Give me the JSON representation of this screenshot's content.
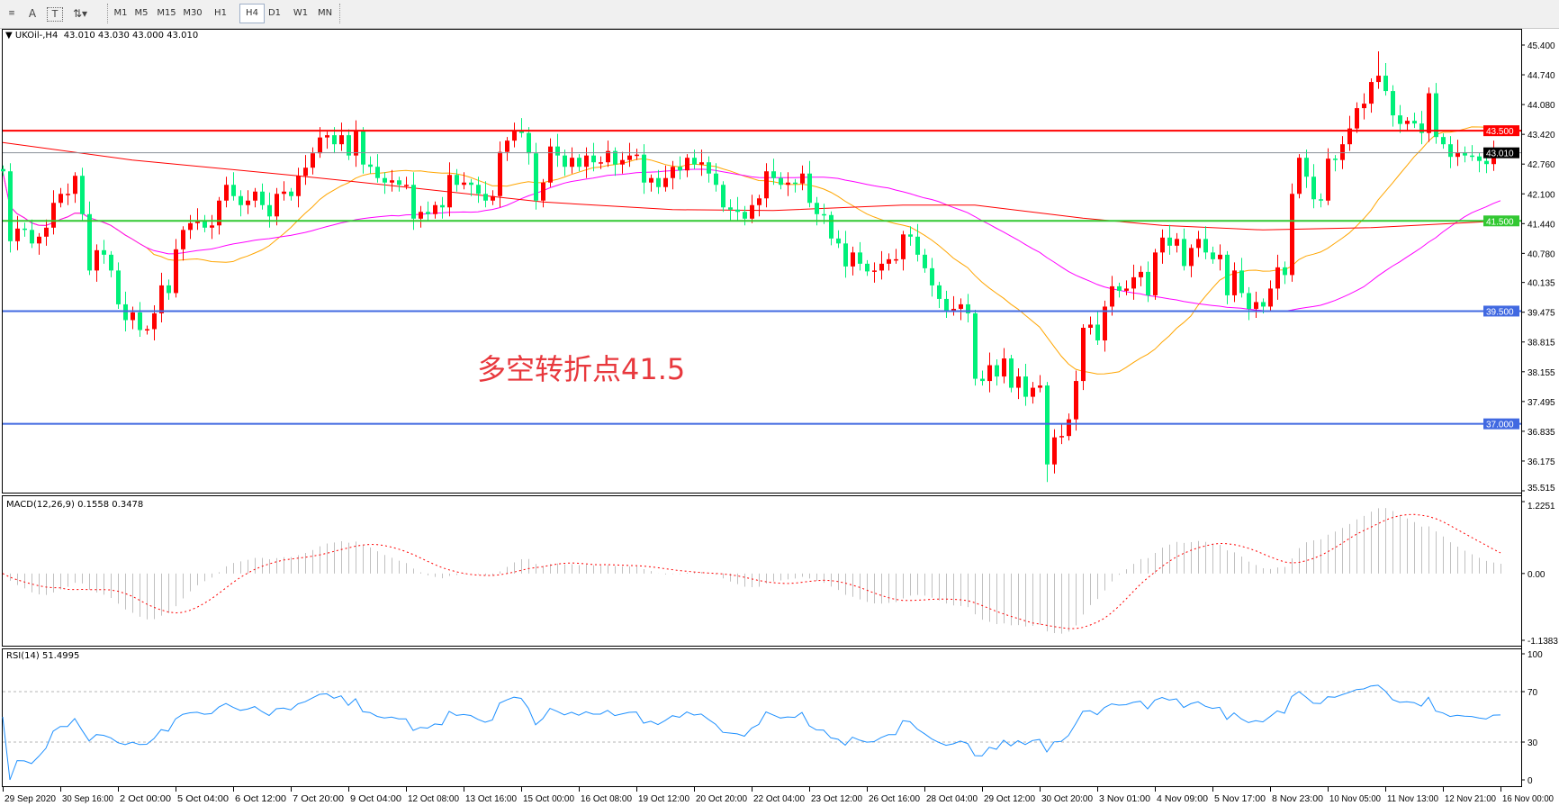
{
  "toolbar": {
    "icons": [
      "periods-separator-icon",
      "text-icon",
      "text-label-icon",
      "arrows-icon"
    ],
    "timeframes": [
      "M1",
      "M5",
      "M15",
      "M30",
      "H1",
      "H4",
      "D1",
      "W1",
      "MN"
    ],
    "active_timeframe": "H4"
  },
  "chart": {
    "symbol_header": "UKOil-,H4",
    "ohlc": "43.010 43.030 43.000 43.010",
    "annotation": "多空转折点41.5",
    "macd_header": "MACD(12,26,9) 0.1558 0.3478",
    "rsi_header": "RSI(14) 51.4995"
  },
  "chart_data": [
    {
      "type": "candlestick",
      "symbol": "UKOil-",
      "timeframe": "H4",
      "up_color": "#ff0000",
      "down_color": "#00f07a",
      "closes": [
        42.6,
        41.05,
        41.33,
        41.3,
        41.0,
        41.15,
        41.35,
        41.9,
        42.1,
        42.1,
        42.5,
        41.65,
        40.4,
        40.85,
        40.75,
        40.4,
        39.65,
        39.3,
        39.47,
        39.08,
        39.1,
        39.45,
        40.07,
        39.9,
        40.87,
        41.3,
        41.45,
        41.5,
        41.35,
        41.4,
        41.95,
        42.3,
        42.05,
        41.85,
        41.95,
        42.15,
        41.85,
        41.6,
        42.1,
        42.15,
        42.05,
        42.5,
        42.68,
        43.0,
        43.35,
        43.4,
        43.2,
        43.4,
        42.95,
        43.5,
        42.75,
        42.7,
        42.45,
        42.35,
        42.4,
        42.3,
        42.3,
        41.55,
        41.7,
        41.65,
        41.85,
        41.8,
        42.52,
        42.3,
        42.35,
        42.3,
        42.1,
        41.95,
        42.05,
        43.03,
        43.28,
        43.5,
        43.45,
        43.0,
        41.95,
        42.35,
        43.15,
        42.95,
        42.7,
        42.9,
        42.7,
        42.95,
        42.8,
        42.8,
        43.05,
        42.75,
        42.85,
        42.95,
        42.97,
        42.35,
        42.45,
        42.25,
        42.45,
        42.7,
        42.62,
        42.9,
        42.75,
        42.8,
        42.55,
        42.3,
        41.8,
        41.75,
        41.7,
        41.55,
        41.85,
        42.0,
        42.6,
        42.45,
        42.3,
        42.35,
        42.33,
        42.55,
        41.9,
        41.65,
        41.63,
        41.11,
        41.0,
        40.49,
        40.8,
        40.55,
        40.38,
        40.4,
        40.55,
        40.65,
        40.65,
        41.2,
        41.15,
        40.75,
        40.45,
        40.07,
        39.77,
        39.5,
        39.55,
        39.65,
        39.45,
        38.0,
        37.95,
        38.3,
        38.05,
        38.45,
        37.8,
        38.05,
        37.6,
        37.8,
        37.85,
        36.1,
        36.7,
        36.73,
        37.1,
        37.95,
        39.13,
        39.2,
        38.85,
        39.6,
        40.05,
        39.95,
        40.0,
        40.25,
        40.37,
        39.85,
        40.8,
        41.13,
        40.95,
        41.1,
        40.5,
        40.9,
        41.1,
        40.8,
        40.65,
        40.75,
        39.85,
        40.4,
        39.9,
        39.55,
        39.7,
        39.6,
        40.0,
        40.47,
        40.3,
        42.1,
        42.9,
        42.48,
        41.98,
        41.95,
        42.88,
        42.85,
        43.2,
        43.55,
        44.0,
        44.1,
        44.58,
        44.72,
        44.38,
        43.84,
        43.65,
        43.72,
        43.66,
        43.45,
        44.33,
        43.36,
        43.2,
        42.92,
        43.02,
        42.95,
        42.93,
        42.83,
        42.76,
        43.0,
        43.01
      ],
      "last_candle": {
        "open": 43.01,
        "high": 43.03,
        "low": 43.0,
        "close": 43.01
      },
      "wick_extremes": [
        {
          "index": 145,
          "low": 35.71
        },
        {
          "index": 191,
          "high": 45.26
        }
      ],
      "ylim": [
        35.515,
        45.4
      ],
      "y_tick_labels": [
        "45.400",
        "44.740",
        "44.080",
        "43.420",
        "42.760",
        "42.100",
        "41.440",
        "40.780",
        "40.135",
        "39.475",
        "38.815",
        "38.155",
        "37.495",
        "36.835",
        "36.175",
        "35.515"
      ],
      "x_tick_labels": [
        "29 Sep 2020",
        "30 Sep 16:00",
        "2 Oct 00:00",
        "5 Oct 04:00",
        "6 Oct 12:00",
        "7 Oct 20:00",
        "9 Oct 04:00",
        "12 Oct 08:00",
        "13 Oct 16:00",
        "15 Oct 00:00",
        "16 Oct 08:00",
        "19 Oct 12:00",
        "20 Oct 20:00",
        "22 Oct 04:00",
        "23 Oct 12:00",
        "26 Oct 16:00",
        "28 Oct 04:00",
        "29 Oct 12:00",
        "30 Oct 20:00",
        "3 Nov 01:00",
        "4 Nov 09:00",
        "5 Nov 17:00",
        "8 Nov 23:00",
        "10 Nov 05:00",
        "11 Nov 13:00",
        "12 Nov 21:00",
        "16 Nov 00:00"
      ],
      "levels": [
        {
          "price": 43.5,
          "label": "43.500",
          "color": "#ff0000",
          "text_color": "#ffffff"
        },
        {
          "price": 43.01,
          "label": "43.010",
          "color": "#8a9099",
          "badge_color": "#000000",
          "text_color": "#ffffff"
        },
        {
          "price": 41.5,
          "label": "41.500",
          "color": "#32c832",
          "text_color": "#ffffff"
        },
        {
          "price": 39.5,
          "label": "39.500",
          "color": "#4169e1",
          "text_color": "#ffffff"
        },
        {
          "price": 37.0,
          "label": "37.000",
          "color": "#4169e1",
          "text_color": "#ffffff"
        }
      ],
      "moving_averages": [
        {
          "color": "#ffa500"
        },
        {
          "color": "#ff00ff"
        },
        {
          "color": "#ff0000",
          "points": [
            [
              0,
              43.24
            ],
            [
              18,
              42.85
            ],
            [
              41,
              42.5
            ],
            [
              53,
              42.3
            ],
            [
              75,
              41.92
            ],
            [
              93,
              41.75
            ],
            [
              107,
              41.73
            ],
            [
              125,
              41.85
            ],
            [
              135,
              41.85
            ],
            [
              150,
              41.56
            ],
            [
              161,
              41.4
            ],
            [
              175,
              41.3
            ],
            [
              190,
              41.35
            ],
            [
              208,
              41.5
            ]
          ]
        }
      ],
      "grid": false
    },
    {
      "type": "bar",
      "indicator": "MACD(12,26,9)",
      "main": 0.1558,
      "signal": 0.3478,
      "ylim": [
        -1.1383,
        1.2251
      ],
      "y_tick_labels": [
        "1.2251",
        "0.00",
        "-1.1383"
      ],
      "histogram_color": "#c0c0c0",
      "signal_color": "#ff0000"
    },
    {
      "type": "line",
      "indicator": "RSI(14)",
      "value": 51.4995,
      "ylim": [
        0,
        100
      ],
      "levels": [
        30,
        70
      ],
      "y_tick_labels": [
        "100",
        "70",
        "30",
        "0"
      ],
      "line_color": "#1e90ff"
    }
  ]
}
